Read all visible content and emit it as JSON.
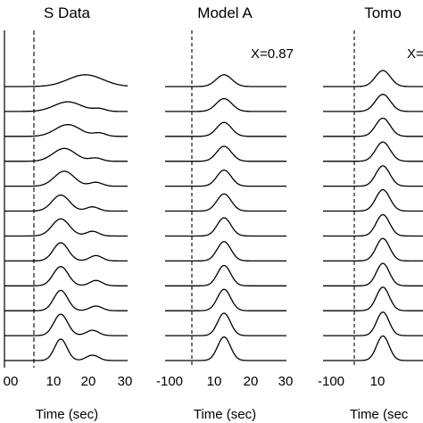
{
  "chart_data": [
    {
      "type": "line",
      "title": "S Data",
      "xlabel": "Time (sec)",
      "xticks": [
        "00",
        "10",
        "20",
        "30"
      ],
      "annotation": "",
      "ref_line_style": "dashed-bold",
      "traces": [
        {
          "peak_time": 18,
          "peak_amp": 0.55,
          "width": 7.0,
          "side_time": 0,
          "side_amp": 0
        },
        {
          "peak_time": 13,
          "peak_amp": 0.45,
          "width": 5.5,
          "side_time": 22,
          "side_amp": 0.12
        },
        {
          "peak_time": 13,
          "peak_amp": 0.55,
          "width": 5.0,
          "side_time": 22,
          "side_amp": 0.15
        },
        {
          "peak_time": 12,
          "peak_amp": 0.6,
          "width": 4.5,
          "side_time": 21,
          "side_amp": 0.15
        },
        {
          "peak_time": 12,
          "peak_amp": 0.7,
          "width": 4.0,
          "side_time": 21,
          "side_amp": 0.18
        },
        {
          "peak_time": 11,
          "peak_amp": 0.75,
          "width": 3.5,
          "side_time": 20,
          "side_amp": 0.2
        },
        {
          "peak_time": 11,
          "peak_amp": 0.8,
          "width": 3.5,
          "side_time": 20,
          "side_amp": 0.22
        },
        {
          "peak_time": 11,
          "peak_amp": 0.85,
          "width": 3.0,
          "side_time": 21,
          "side_amp": 0.25
        },
        {
          "peak_time": 11,
          "peak_amp": 0.9,
          "width": 3.0,
          "side_time": 21,
          "side_amp": 0.25
        },
        {
          "peak_time": 11,
          "peak_amp": 0.95,
          "width": 2.8,
          "side_time": 21,
          "side_amp": 0.22
        },
        {
          "peak_time": 11,
          "peak_amp": 1.0,
          "width": 2.8,
          "side_time": 20,
          "side_amp": 0.25
        },
        {
          "peak_time": 11,
          "peak_amp": 1.0,
          "width": 2.5,
          "side_time": 20,
          "side_amp": 0.25
        }
      ]
    },
    {
      "type": "line",
      "title": "Model A",
      "xlabel": "Time (sec)",
      "xticks": [
        "-100",
        "10",
        "20",
        "30"
      ],
      "annotation": "X=0.87",
      "ref_line_style": "dashed-thin",
      "traces": [
        {
          "peak_time": 12,
          "peak_amp": 0.55,
          "width": 3.2,
          "side_time": 0,
          "side_amp": 0
        },
        {
          "peak_time": 12,
          "peak_amp": 0.6,
          "width": 3.2,
          "side_time": 0,
          "side_amp": 0
        },
        {
          "peak_time": 12,
          "peak_amp": 0.65,
          "width": 3.0,
          "side_time": 0,
          "side_amp": 0
        },
        {
          "peak_time": 12,
          "peak_amp": 0.7,
          "width": 3.0,
          "side_time": 0,
          "side_amp": 0
        },
        {
          "peak_time": 12,
          "peak_amp": 0.75,
          "width": 2.9,
          "side_time": 0,
          "side_amp": 0
        },
        {
          "peak_time": 12,
          "peak_amp": 0.8,
          "width": 2.9,
          "side_time": 0,
          "side_amp": 0
        },
        {
          "peak_time": 12,
          "peak_amp": 0.85,
          "width": 2.8,
          "side_time": 0,
          "side_amp": 0
        },
        {
          "peak_time": 12,
          "peak_amp": 0.9,
          "width": 2.8,
          "side_time": 0,
          "side_amp": 0
        },
        {
          "peak_time": 12,
          "peak_amp": 0.95,
          "width": 2.7,
          "side_time": 0,
          "side_amp": 0
        },
        {
          "peak_time": 12,
          "peak_amp": 1.0,
          "width": 2.7,
          "side_time": 0,
          "side_amp": 0
        },
        {
          "peak_time": 12,
          "peak_amp": 1.05,
          "width": 2.6,
          "side_time": 0,
          "side_amp": 0
        },
        {
          "peak_time": 12,
          "peak_amp": 1.1,
          "width": 2.6,
          "side_time": 0,
          "side_amp": 0
        }
      ]
    },
    {
      "type": "line",
      "title": "Tomo",
      "xlabel": "Time (sec",
      "xticks": [
        "-100",
        "10"
      ],
      "annotation": "X=",
      "ref_line_style": "dashed-thin",
      "traces": [
        {
          "peak_time": 12,
          "peak_amp": 0.75,
          "width": 3.0,
          "side_time": 0,
          "side_amp": 0
        },
        {
          "peak_time": 12,
          "peak_amp": 0.8,
          "width": 3.0,
          "side_time": 0,
          "side_amp": 0
        },
        {
          "peak_time": 12,
          "peak_amp": 0.85,
          "width": 2.9,
          "side_time": 0,
          "side_amp": 0
        },
        {
          "peak_time": 12,
          "peak_amp": 0.9,
          "width": 2.9,
          "side_time": 0,
          "side_amp": 0
        },
        {
          "peak_time": 12,
          "peak_amp": 0.95,
          "width": 2.8,
          "side_time": 0,
          "side_amp": 0
        },
        {
          "peak_time": 12,
          "peak_amp": 1.0,
          "width": 2.8,
          "side_time": 0,
          "side_amp": 0
        },
        {
          "peak_time": 12,
          "peak_amp": 1.0,
          "width": 2.7,
          "side_time": 0,
          "side_amp": 0
        },
        {
          "peak_time": 12,
          "peak_amp": 1.05,
          "width": 2.7,
          "side_time": 0,
          "side_amp": 0
        },
        {
          "peak_time": 12,
          "peak_amp": 1.05,
          "width": 2.6,
          "side_time": 0,
          "side_amp": 0
        },
        {
          "peak_time": 12,
          "peak_amp": 1.1,
          "width": 2.6,
          "side_time": 0,
          "side_amp": 0
        },
        {
          "peak_time": 12,
          "peak_amp": 1.1,
          "width": 2.5,
          "side_time": 0,
          "side_amp": 0
        },
        {
          "peak_time": 12,
          "peak_amp": 1.15,
          "width": 2.5,
          "side_time": 0,
          "side_amp": 0
        }
      ]
    }
  ]
}
